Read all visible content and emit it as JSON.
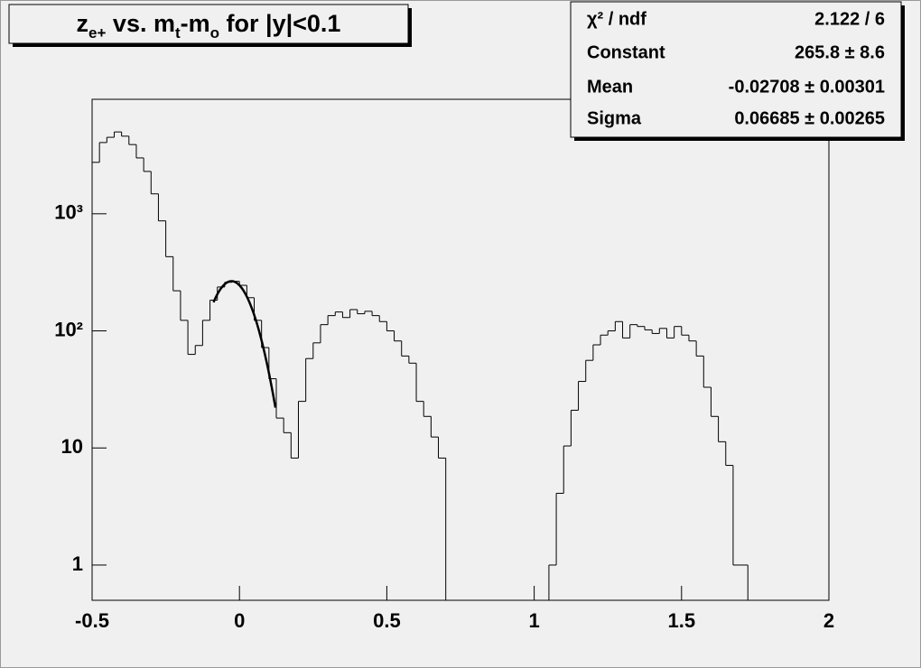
{
  "chart_data": {
    "type": "histogram",
    "title": [
      {
        "text": "z"
      },
      {
        "text": "e+",
        "sub": true
      },
      {
        "text": " vs. m"
      },
      {
        "text": "t",
        "sub": true
      },
      {
        "text": "-m"
      },
      {
        "text": "o",
        "sub": true
      },
      {
        "text": " for |y|<0.1"
      }
    ],
    "bins": [
      -0.5,
      -0.475,
      -0.45,
      -0.425,
      -0.4,
      -0.375,
      -0.35,
      -0.325,
      -0.3,
      -0.275,
      -0.25,
      -0.225,
      -0.2,
      -0.175,
      -0.15,
      -0.125,
      -0.1,
      -0.075,
      -0.05,
      -0.025,
      0,
      0.025,
      0.05,
      0.075,
      0.1,
      0.125,
      0.15,
      0.175,
      0.2,
      0.225,
      0.25,
      0.275,
      0.3,
      0.325,
      0.35,
      0.375,
      0.4,
      0.425,
      0.45,
      0.475,
      0.5,
      0.525,
      0.55,
      0.575,
      0.6,
      0.625,
      0.65,
      0.675,
      0.7,
      0.725,
      0.75,
      0.775,
      0.8,
      0.825,
      0.85,
      0.875,
      0.9,
      0.925,
      0.95,
      0.975,
      1,
      1.025,
      1.05,
      1.075,
      1.1,
      1.125,
      1.15,
      1.175,
      1.2,
      1.225,
      1.25,
      1.275,
      1.3,
      1.325,
      1.35,
      1.375,
      1.4,
      1.425,
      1.45,
      1.475,
      1.5,
      1.525,
      1.55,
      1.575,
      1.6,
      1.625,
      1.65,
      1.675,
      1.7,
      1.725,
      1.75,
      1.775,
      1.8,
      1.825,
      1.85,
      1.875,
      1.9,
      1.925,
      1.95,
      1.975,
      2
    ],
    "values": [
      2750,
      4060,
      4500,
      5000,
      4600,
      3900,
      3000,
      2300,
      1480,
      870,
      430,
      220,
      123,
      63,
      75,
      123,
      183,
      237,
      260,
      265,
      245,
      192,
      123,
      72,
      39,
      18,
      13.5,
      8.2,
      25,
      58,
      79,
      113,
      135,
      145,
      130,
      152,
      140,
      147,
      135,
      120,
      100,
      82,
      61,
      53,
      25,
      18.6,
      12.4,
      8.2,
      0,
      0,
      0,
      0,
      0,
      0,
      0,
      0,
      0,
      0,
      0,
      0,
      0,
      0,
      1,
      4.1,
      10.4,
      21,
      37,
      56,
      76,
      92,
      100,
      120,
      87,
      113,
      109,
      102,
      95,
      105,
      87,
      109,
      92,
      82,
      61,
      33,
      18.6,
      11.3,
      7.1,
      1,
      1,
      0,
      0,
      0,
      0,
      0,
      0,
      0,
      0,
      0,
      0,
      0
    ],
    "color": "#000000",
    "xlim": [
      -0.5,
      2
    ],
    "xticks": [
      -0.5,
      0,
      0.5,
      1,
      1.5,
      2
    ],
    "ylim": [
      0.5,
      9500
    ],
    "yticks": [
      1,
      10,
      {
        "value": 100,
        "label": "10²"
      },
      {
        "value": 1000,
        "label": "10³"
      }
    ],
    "log_y": true,
    "fit_range": [
      -0.088,
      0.122
    ],
    "stats": [
      {
        "name": "χ² / ndf",
        "text": "2.122 / 6"
      },
      {
        "name": "Constant",
        "value": 265.8,
        "error": 8.6,
        "text": "265.8 ± 8.6"
      },
      {
        "name": "Mean",
        "value": -0.02708,
        "error": 0.00301,
        "text": "-0.02708 ± 0.00301"
      },
      {
        "name": "Sigma",
        "value": 0.06685,
        "error": 0.00265,
        "text": "0.06685 ± 0.00265"
      }
    ]
  }
}
